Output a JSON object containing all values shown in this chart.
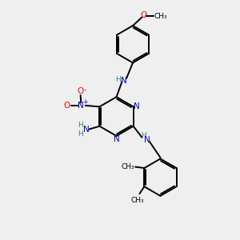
{
  "bg_color": "#efefef",
  "bond_color": "#000000",
  "n_color": "#0000cc",
  "o_color": "#ff0000",
  "h_color": "#2e8b57",
  "lw": 1.4,
  "dbo": 0.035,
  "xlim": [
    0,
    10
  ],
  "ylim": [
    0,
    10
  ],
  "ring_r": 0.82,
  "small_ring_r": 0.78
}
